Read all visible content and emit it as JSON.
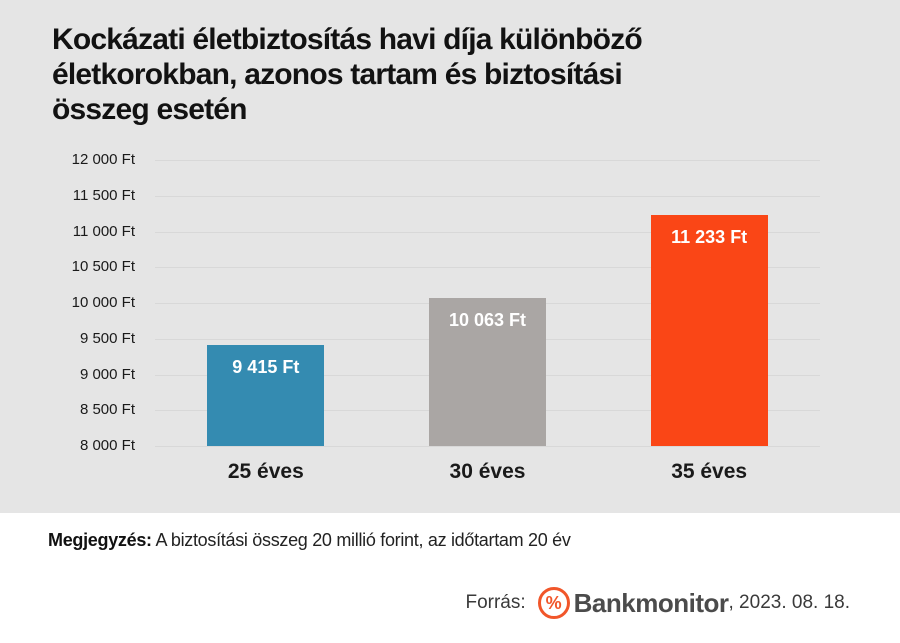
{
  "page": {
    "background_top": "#e5e5e5",
    "background_bottom": "#ffffff"
  },
  "title_lines": [
    "Kockázati életbiztosítás havi díja különböző",
    "életkorokban, azonos tartam és biztosítási",
    "összeg esetén"
  ],
  "chart_data": {
    "type": "bar",
    "title": "Kockázati életbiztosítás havi díja különböző életkorokban, azonos tartam és biztosítási összeg esetén",
    "categories": [
      "25 éves",
      "30 éves",
      "35 éves"
    ],
    "values": [
      9415,
      10063,
      11233
    ],
    "value_labels": [
      "9 415 Ft",
      "10 063 Ft",
      "11 233 Ft"
    ],
    "bar_colors": [
      "#348bb1",
      "#aaa6a4",
      "#fa4616"
    ],
    "xlabel": "",
    "ylabel": "",
    "ylim": [
      8000,
      12000
    ],
    "yticks": [
      {
        "value": 12000,
        "label": "12 000 Ft"
      },
      {
        "value": 11500,
        "label": "11 500 Ft"
      },
      {
        "value": 11000,
        "label": "11 000 Ft"
      },
      {
        "value": 10500,
        "label": "10 500 Ft"
      },
      {
        "value": 10000,
        "label": "10 000 Ft"
      },
      {
        "value": 9500,
        "label": "9 500 Ft"
      },
      {
        "value": 9000,
        "label": "9 000 Ft"
      },
      {
        "value": 8500,
        "label": "8 500 Ft"
      },
      {
        "value": 8000,
        "label": "8 000 Ft"
      }
    ],
    "grid": true,
    "gridline_color": "#d8d8d8",
    "legend": "none"
  },
  "note": {
    "label": "Megjegyzés:",
    "text": " A biztosítási összeg 20 millió forint, az időtartam 20 év"
  },
  "source": {
    "label": "Forrás:",
    "logo_symbol": "%",
    "logo_color": "#f1562a",
    "brand": "Bankmonitor",
    "date_suffix": ", 2023. 08. 18."
  }
}
